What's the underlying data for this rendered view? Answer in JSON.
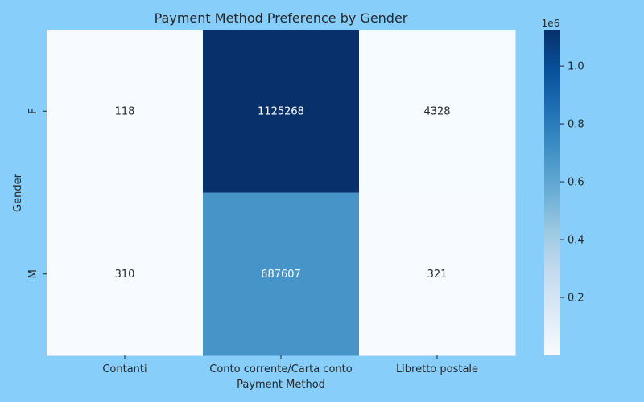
{
  "background_color": "#87cefa",
  "chart_data": {
    "type": "heatmap",
    "title": "Payment Method Preference by Gender",
    "xlabel": "Payment Method",
    "ylabel": "Gender",
    "x_categories": [
      "Contanti",
      "Conto corrente/Carta conto",
      "Libretto postale"
    ],
    "y_categories": [
      "F",
      "M"
    ],
    "values": [
      [
        118,
        1125268,
        4328
      ],
      [
        310,
        687607,
        321
      ]
    ],
    "colormap": "Blues",
    "colorbar": {
      "ticks": [
        0.2,
        0.4,
        0.6,
        0.8,
        1.0
      ],
      "tick_labels": [
        "0.2",
        "0.4",
        "0.6",
        "0.8",
        "1.0"
      ],
      "offset_label": "1e6",
      "range": [
        118,
        1125268
      ]
    }
  }
}
